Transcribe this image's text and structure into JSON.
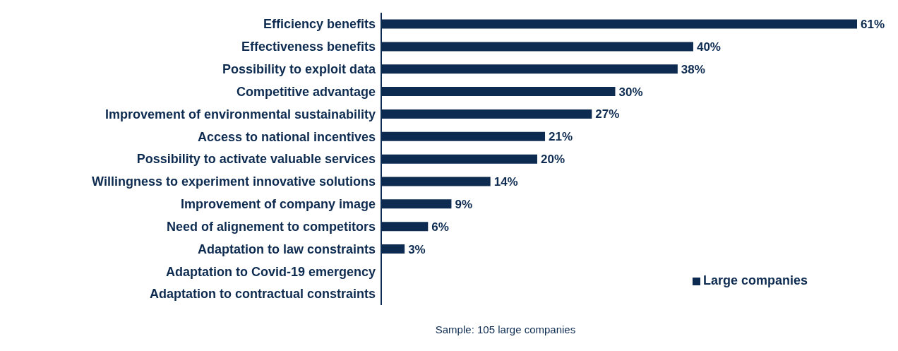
{
  "chart_data": {
    "type": "bar",
    "orientation": "horizontal",
    "categories": [
      "Efficiency benefits",
      "Effectiveness benefits",
      "Possibility to exploit data",
      "Competitive advantage",
      "Improvement of environmental sustainability",
      "Access to national incentives",
      "Possibility to activate valuable services",
      "Willingness to experiment innovative solutions",
      "Improvement of company image",
      "Need of alignement to competitors",
      "Adaptation to law constraints",
      "Adaptation to Covid-19 emergency",
      "Adaptation to contractual constraints"
    ],
    "series": [
      {
        "name": "Large companies",
        "color": "#0d2b50",
        "values": [
          61,
          40,
          38,
          30,
          27,
          21,
          20,
          14,
          9,
          6,
          3,
          null,
          null
        ],
        "value_labels": [
          "61%",
          "40%",
          "38%",
          "30%",
          "27%",
          "21%",
          "20%",
          "14%",
          "9%",
          "6%",
          "3%",
          null,
          null
        ]
      }
    ],
    "legend": "bottom right",
    "annotations": [
      "Sample: 105 large companies"
    ]
  }
}
